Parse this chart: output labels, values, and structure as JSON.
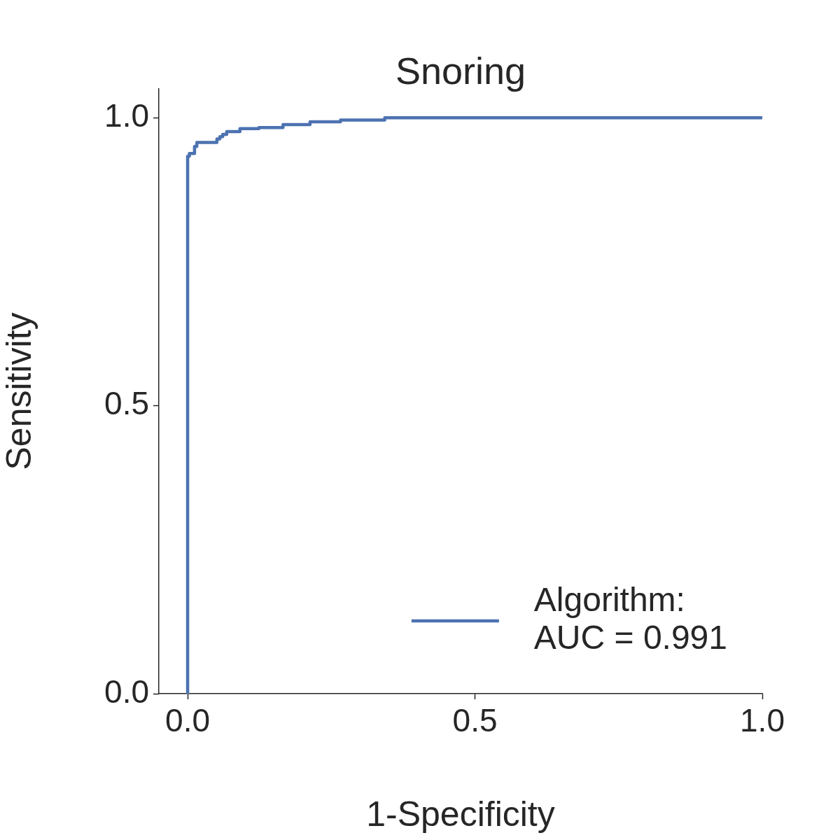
{
  "chart_data": {
    "type": "step",
    "title": "Snoring",
    "xlabel": "1-Specificity",
    "ylabel": "Sensitivity",
    "xlim": [
      -0.05,
      1.0
    ],
    "ylim": [
      0,
      1.05
    ],
    "xticks": [
      {
        "value": 0,
        "label": "0.0"
      },
      0.5,
      {
        "value": 1,
        "label": "1.0"
      }
    ],
    "yticks": [
      {
        "value": 0,
        "label": "0.0"
      },
      0.5,
      {
        "value": 1,
        "label": "1.0"
      }
    ],
    "grid": false,
    "legend": "bottom right",
    "marker": "none",
    "line_style": "solid",
    "series": [
      {
        "name": "Algorithm:\nAUC = 0.991",
        "color": "#4c72b0",
        "x": [
          0,
          0,
          0.003,
          0.012,
          0.016,
          0.051,
          0.056,
          0.061,
          0.068,
          0.091,
          0.124,
          0.166,
          0.213,
          0.266,
          0.343,
          0.508,
          1.0
        ],
        "values": [
          0,
          0.855,
          0.933,
          0.938,
          0.95,
          0.957,
          0.963,
          0.967,
          0.971,
          0.976,
          0.981,
          0.983,
          0.988,
          0.993,
          0.996,
          1.0,
          1.0
        ]
      }
    ]
  }
}
